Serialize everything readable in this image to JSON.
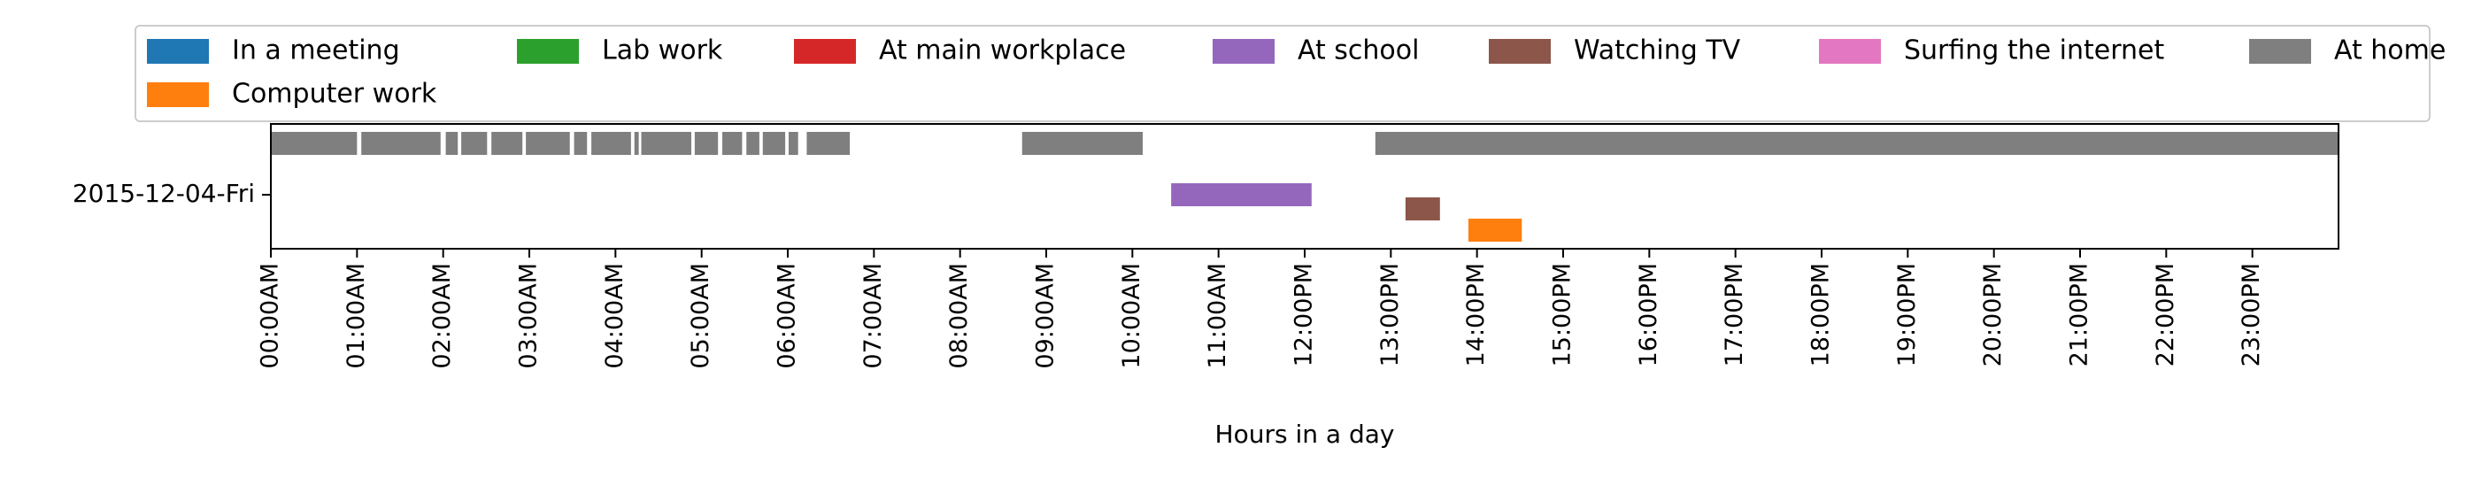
{
  "chart_data": {
    "type": "timeline",
    "title": "",
    "xlabel": "Hours in a day",
    "ylabel": "",
    "y_category": "2015-12-04-Fri",
    "xlim_hours": [
      0,
      24
    ],
    "grid": false,
    "legend_placement": "top",
    "x_tick_labels": [
      "00:00AM",
      "01:00AM",
      "02:00AM",
      "03:00AM",
      "04:00AM",
      "05:00AM",
      "06:00AM",
      "07:00AM",
      "08:00AM",
      "09:00AM",
      "10:00AM",
      "11:00AM",
      "12:00PM",
      "13:00PM",
      "14:00PM",
      "15:00PM",
      "16:00PM",
      "17:00PM",
      "18:00PM",
      "19:00PM",
      "20:00PM",
      "21:00PM",
      "22:00PM",
      "23:00PM"
    ],
    "legend": [
      {
        "label": "In a meeting",
        "color": "#1f77b4"
      },
      {
        "label": "Lab work",
        "color": "#2ca02c"
      },
      {
        "label": "At main workplace",
        "color": "#d62728"
      },
      {
        "label": "At school",
        "color": "#9467bd"
      },
      {
        "label": "Watching TV",
        "color": "#8c564b"
      },
      {
        "label": "Surfing the internet",
        "color": "#e377c2"
      },
      {
        "label": "At home",
        "color": "#7f7f7f"
      },
      {
        "label": "Computer work",
        "color": "#ff7f0e"
      }
    ],
    "series": [
      {
        "name": "At home",
        "color": "#7f7f7f",
        "lane": 0,
        "intervals": [
          [
            0.0,
            1.0
          ],
          [
            1.05,
            1.97
          ],
          [
            2.03,
            2.17
          ],
          [
            2.21,
            2.51
          ],
          [
            2.56,
            2.92
          ],
          [
            2.96,
            3.47
          ],
          [
            3.52,
            3.67
          ],
          [
            3.72,
            4.18
          ],
          [
            4.22,
            4.27
          ],
          [
            4.3,
            4.88
          ],
          [
            4.92,
            5.19
          ],
          [
            5.24,
            5.47
          ],
          [
            5.52,
            5.67
          ],
          [
            5.71,
            5.97
          ],
          [
            6.01,
            6.12
          ],
          [
            6.22,
            6.72
          ],
          [
            8.72,
            10.12
          ],
          [
            12.82,
            24.0
          ]
        ]
      },
      {
        "name": "At school",
        "color": "#9467bd",
        "lane": 1,
        "intervals": [
          [
            10.45,
            12.08
          ]
        ]
      },
      {
        "name": "Watching TV",
        "color": "#8c564b",
        "lane": 1.4,
        "intervals": [
          [
            13.17,
            13.57
          ]
        ]
      },
      {
        "name": "Computer work",
        "color": "#ff7f0e",
        "lane": 2,
        "intervals": [
          [
            13.9,
            14.52
          ]
        ]
      }
    ]
  }
}
